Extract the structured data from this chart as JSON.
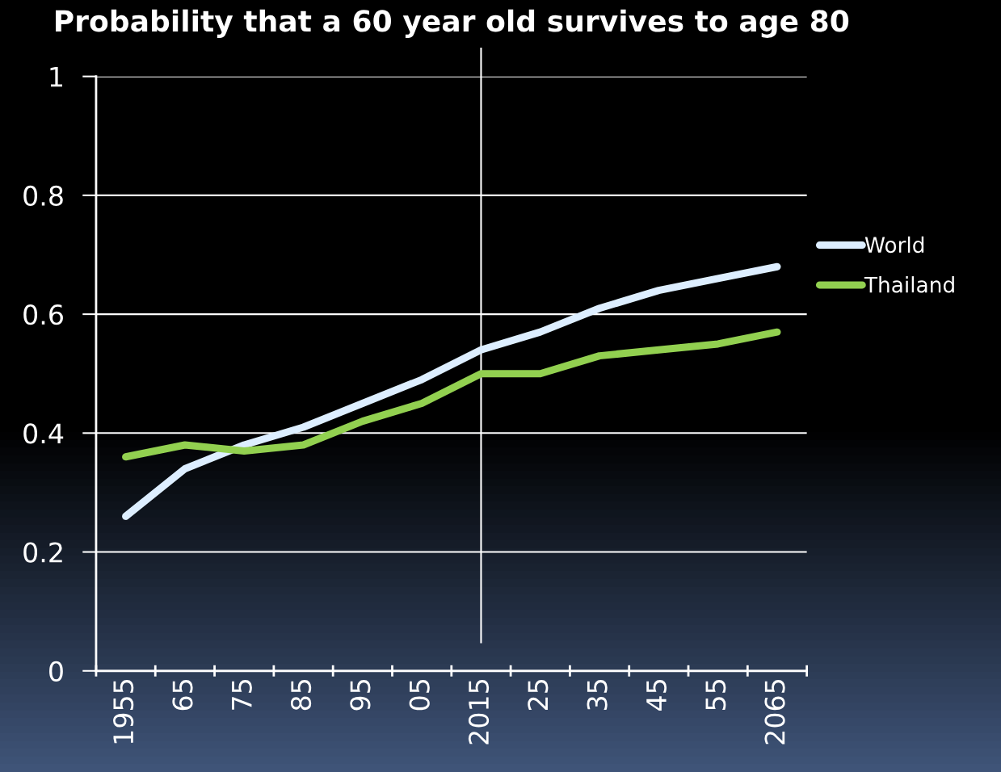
{
  "chart_data": {
    "type": "line",
    "title": "Probability that a 60 year old survives to age 80",
    "categories": [
      "1955",
      "65",
      "75",
      "85",
      "95",
      "05",
      "2015",
      "25",
      "35",
      "45",
      "55",
      "2065"
    ],
    "series": [
      {
        "name": "World",
        "color": "#ddeeff",
        "values": [
          0.26,
          0.34,
          0.38,
          0.41,
          0.45,
          0.49,
          0.54,
          0.57,
          0.61,
          0.64,
          0.66,
          0.68
        ]
      },
      {
        "name": "Thailand",
        "color": "#92d050",
        "values": [
          0.36,
          0.38,
          0.37,
          0.38,
          0.42,
          0.45,
          0.5,
          0.5,
          0.53,
          0.54,
          0.55,
          0.57
        ]
      }
    ],
    "ylim": [
      0,
      1
    ],
    "yticks": [
      0,
      0.2,
      0.4,
      0.6,
      0.8,
      1
    ],
    "grid": "y",
    "legend": "right",
    "marker": "none",
    "line_style": "solid",
    "ref_lines": [
      {
        "axis": "x",
        "value": "2015",
        "color": "#ffffff"
      }
    ]
  }
}
